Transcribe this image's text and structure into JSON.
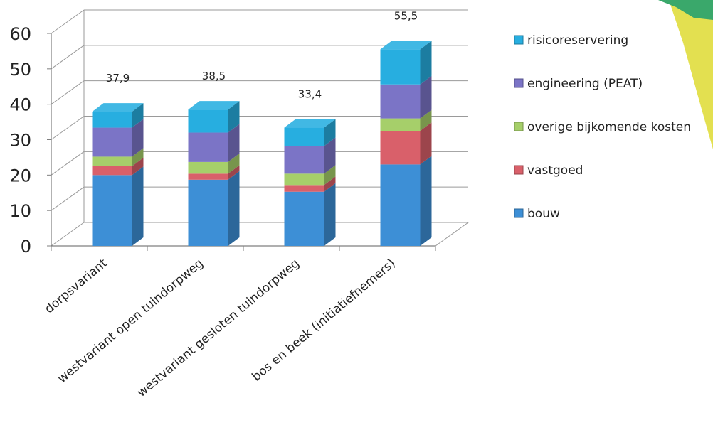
{
  "chart_data": {
    "type": "bar",
    "stacked": true,
    "three_d": true,
    "categories": [
      "dorpsvariant",
      "westvariant open tuindorpweg",
      "westvariant gesloten tuindorpweg",
      "bos en beek (initiatiefnemers)"
    ],
    "series": [
      {
        "name": "bouw",
        "color": "#3d8fd6",
        "values": [
          20,
          18.7,
          15.3,
          23
        ]
      },
      {
        "name": "vastgoed",
        "color": "#d9606a",
        "values": [
          2.5,
          1.7,
          1.9,
          9.5
        ]
      },
      {
        "name": "overige bijkomende kosten",
        "color": "#a6cf6a",
        "values": [
          2.7,
          3.3,
          3.2,
          3.5
        ]
      },
      {
        "name": "engineering (PEAT)",
        "color": "#7b74c6",
        "values": [
          8.2,
          8.3,
          7.8,
          9.6
        ]
      },
      {
        "name": "risicoreservering",
        "color": "#27aee0",
        "values": [
          4.5,
          6.5,
          5.2,
          9.9
        ]
      }
    ],
    "totals": [
      "37,9",
      "38,5",
      "33,4",
      "55,5"
    ],
    "total_values": [
      37.9,
      38.5,
      33.4,
      55.5
    ],
    "ylim": [
      0,
      60
    ],
    "yticks": [
      "0",
      "10",
      "20",
      "30",
      "40",
      "50",
      "60"
    ],
    "ytick_values": [
      0,
      10,
      20,
      30,
      40,
      50,
      60
    ],
    "grid": true,
    "legend_position": "right",
    "legend_order": [
      "risicoreservering",
      "engineering (PEAT)",
      "overige bijkomende kosten",
      "vastgoed",
      "bouw"
    ],
    "xlabel": "",
    "ylabel": "",
    "title": ""
  },
  "decoration": {
    "corner_colors": [
      "#3aa86b",
      "#e3e050"
    ]
  }
}
